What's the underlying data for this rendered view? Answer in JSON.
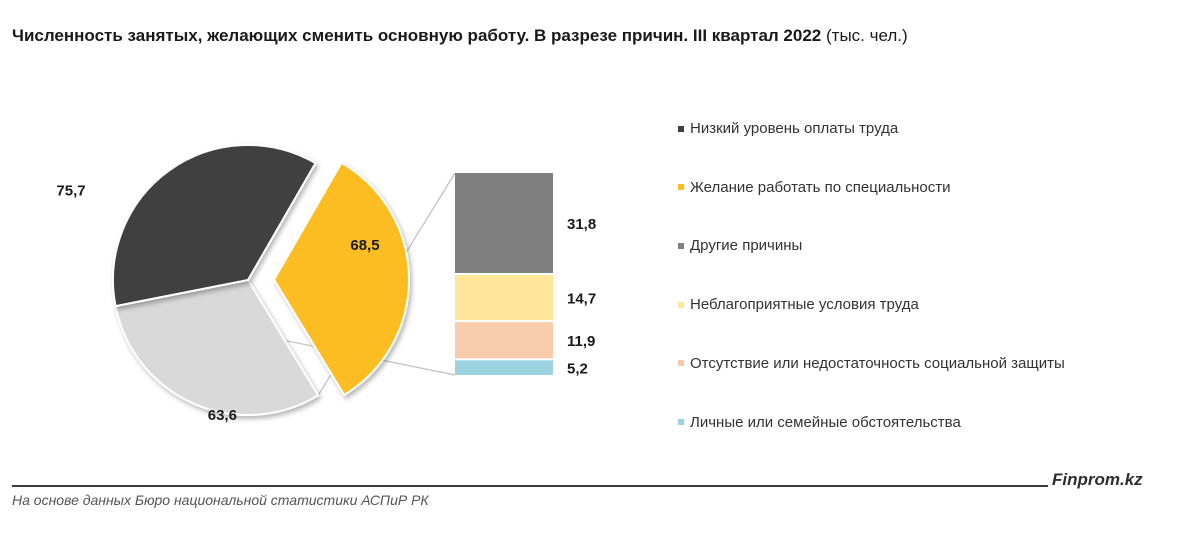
{
  "title": {
    "main": "Численность занятых, желающих сменить основную работу. В разрезе причин. III квартал 2022",
    "unit": "(тыс. чел.)"
  },
  "chart_data": {
    "type": "bar-of-pie",
    "pie": {
      "slices": [
        {
          "category": "Желание работать по специальности",
          "value": 68.5,
          "label": "68,5",
          "color": "#FBBD22",
          "exploded": true
        },
        {
          "category": "Другие причины (сумма)",
          "value": 63.6,
          "label": "63,6",
          "color": "#D9D9D9",
          "exploded": false
        },
        {
          "category": "Низкий уровень оплаты труда",
          "value": 75.7,
          "label": "75,7",
          "color": "#3F3F3F",
          "exploded": false
        }
      ]
    },
    "bar": {
      "segments": [
        {
          "category": "Другие причины",
          "value": 31.8,
          "label": "31,8",
          "color": "#7F7F7F"
        },
        {
          "category": "Неблагоприятные условия труда",
          "value": 14.7,
          "label": "14,7",
          "color": "#FFE699"
        },
        {
          "category": "Отсутствие или недостаточность социальной защиты",
          "value": 11.9,
          "label": "11,9",
          "color": "#F8CBAD"
        },
        {
          "category": "Личные или семейные обстоятельства",
          "value": 5.2,
          "label": "5,2",
          "color": "#9BD3E0"
        }
      ]
    },
    "legend": [
      {
        "label": "Низкий уровень оплаты труда",
        "color": "#3F3F3F"
      },
      {
        "label": "Желание работать по специальности",
        "color": "#FBBD22"
      },
      {
        "label": "Другие причины",
        "color": "#7F7F7F"
      },
      {
        "label": "Неблагоприятные условия труда",
        "color": "#FFE699"
      },
      {
        "label": "Отсутствие или недостаточность социальной защиты",
        "color": "#F8CBAD"
      },
      {
        "label": "Личные или семейные обстоятельства",
        "color": "#9BD3E0"
      }
    ],
    "legend_position": "right"
  },
  "footer": {
    "brand": "Finprom.kz",
    "source": "На основе данных Бюро национальной статистики АСПиР РК"
  }
}
